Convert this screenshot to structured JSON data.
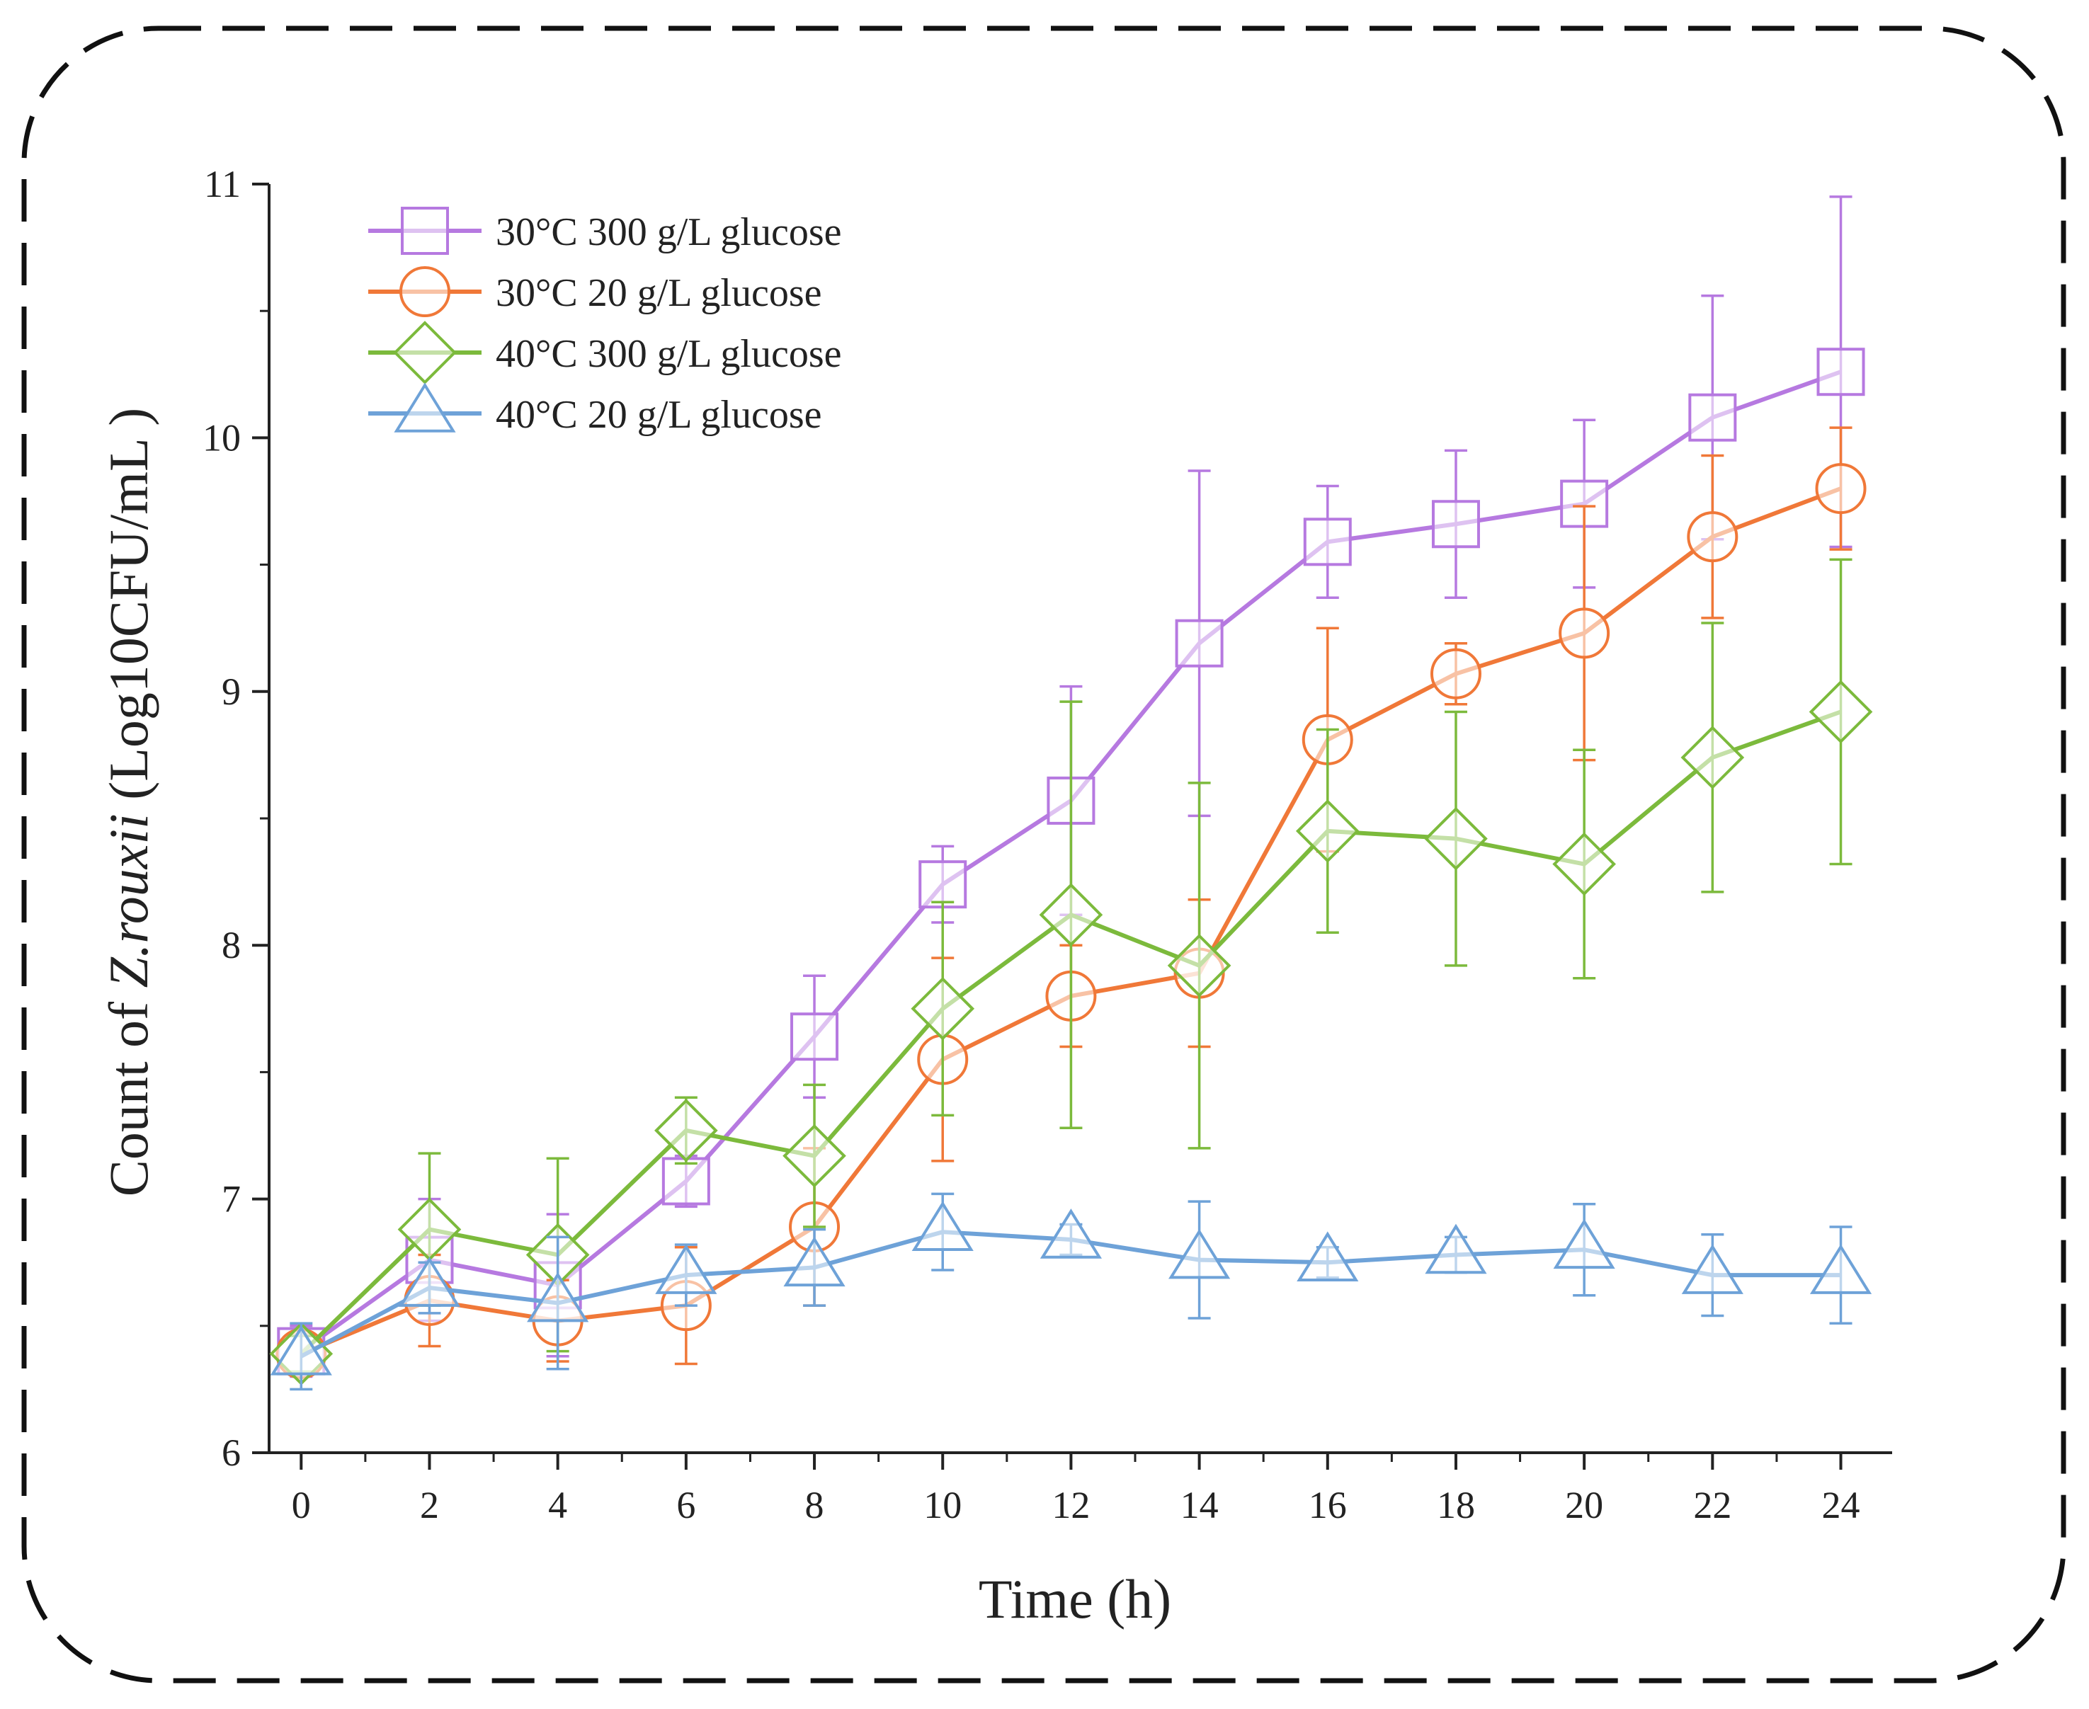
{
  "chart_data": {
    "type": "line",
    "title": "",
    "xlabel": "Time (h)",
    "ylabel_prefix": "Count of ",
    "ylabel_italic": "Z.rouxii",
    "ylabel_suffix": " (Log10CFU/mL )",
    "xlim": [
      -0.5,
      24.8
    ],
    "ylim": [
      6,
      11
    ],
    "x": [
      0,
      2,
      4,
      6,
      8,
      10,
      12,
      14,
      16,
      18,
      20,
      22,
      24
    ],
    "xticks": [
      "0",
      "2",
      "4",
      "6",
      "8",
      "10",
      "12",
      "14",
      "16",
      "18",
      "20",
      "22",
      "24"
    ],
    "yticks": [
      "6",
      "7",
      "8",
      "9",
      "10",
      "11"
    ],
    "legend_position": "top-left",
    "series": [
      {
        "name": "30°C 300 g/L glucose",
        "marker": "square",
        "color": "#b679e0",
        "values": [
          6.4,
          6.76,
          6.66,
          7.07,
          7.64,
          8.24,
          8.57,
          9.19,
          9.59,
          9.66,
          9.74,
          10.08,
          10.26
        ],
        "errors": [
          0.1,
          0.24,
          0.28,
          0.1,
          0.24,
          0.15,
          0.45,
          0.68,
          0.22,
          0.29,
          0.33,
          0.48,
          0.69
        ]
      },
      {
        "name": "30°C 20 g/L glucose",
        "marker": "circle",
        "color": "#f07838",
        "values": [
          6.39,
          6.6,
          6.52,
          6.58,
          6.89,
          7.55,
          7.8,
          7.89,
          8.81,
          9.07,
          9.23,
          9.61,
          9.8
        ],
        "errors": [
          0.08,
          0.18,
          0.16,
          0.23,
          0.31,
          0.4,
          0.2,
          0.29,
          0.44,
          0.12,
          0.5,
          0.32,
          0.24
        ]
      },
      {
        "name": "40°C 300 g/L glucose",
        "marker": "diamond",
        "color": "#7cba3c",
        "values": [
          6.39,
          6.88,
          6.78,
          7.27,
          7.17,
          7.75,
          8.12,
          7.92,
          8.45,
          8.42,
          8.32,
          8.74,
          8.92
        ],
        "errors": [
          0.07,
          0.3,
          0.38,
          0.13,
          0.28,
          0.42,
          0.84,
          0.72,
          0.4,
          0.5,
          0.45,
          0.53,
          0.6
        ]
      },
      {
        "name": "40°C 20 g/L glucose",
        "marker": "triangle",
        "color": "#6ea2d8",
        "values": [
          6.38,
          6.65,
          6.59,
          6.7,
          6.73,
          6.87,
          6.84,
          6.76,
          6.75,
          6.78,
          6.8,
          6.7,
          6.7
        ],
        "errors": [
          0.13,
          0.1,
          0.26,
          0.12,
          0.15,
          0.15,
          0.06,
          0.23,
          0.06,
          0.07,
          0.18,
          0.16,
          0.19
        ]
      }
    ]
  }
}
